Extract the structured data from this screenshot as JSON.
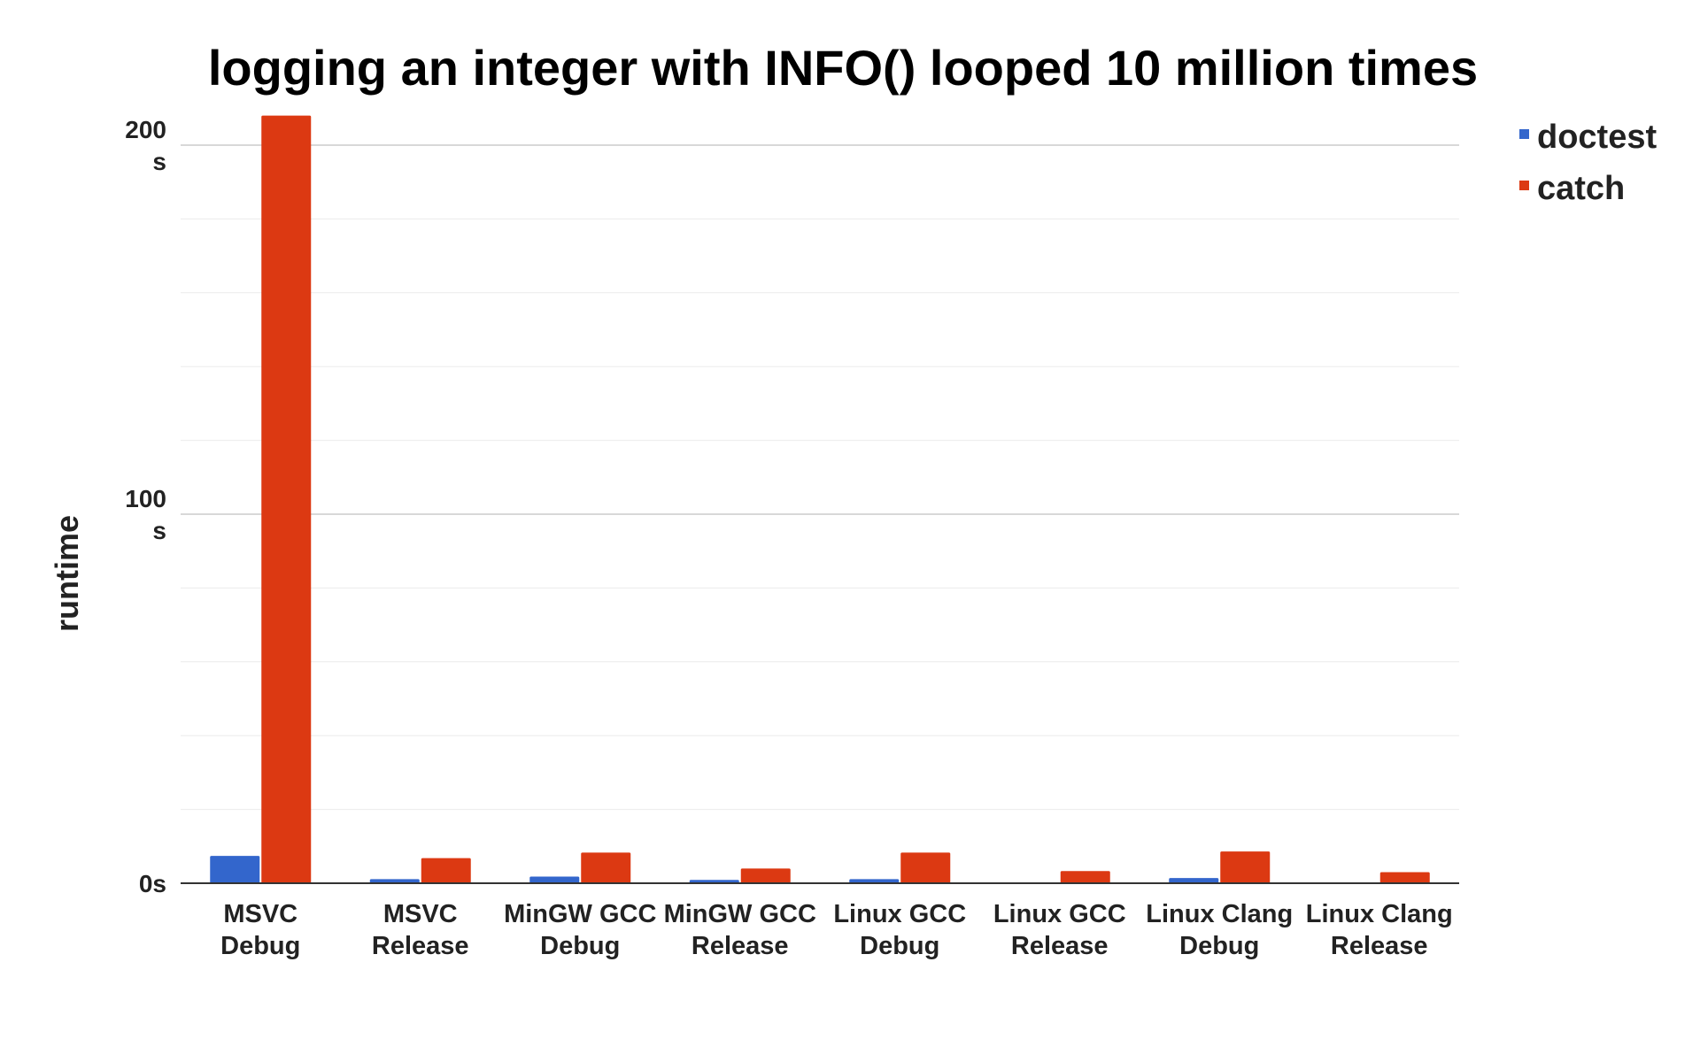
{
  "chart_data": {
    "type": "bar",
    "title": "logging an integer with INFO() looped 10 million times",
    "xlabel": "",
    "ylabel": "runtime",
    "ylim": [
      0,
      200
    ],
    "yticks": [
      {
        "value": 0,
        "label": "0s"
      },
      {
        "value": 100,
        "label": "100 s"
      },
      {
        "value": 200,
        "label": "200 s"
      }
    ],
    "minor_grid_step": 20,
    "grid": true,
    "legend_position": "right",
    "categories": [
      [
        "MSVC",
        "Debug"
      ],
      [
        "MSVC",
        "Release"
      ],
      [
        "MinGW GCC",
        "Debug"
      ],
      [
        "MinGW GCC",
        "Release"
      ],
      [
        "Linux GCC",
        "Debug"
      ],
      [
        "Linux GCC",
        "Release"
      ],
      [
        "Linux Clang",
        "Debug"
      ],
      [
        "Linux Clang",
        "Release"
      ]
    ],
    "series": [
      {
        "name": "doctest",
        "color": "#3366cc",
        "values": [
          7.4,
          1.1,
          1.8,
          0.9,
          1.1,
          0.1,
          1.4,
          0.1
        ]
      },
      {
        "name": "catch",
        "color": "#dc3912",
        "values": [
          208,
          6.8,
          8.3,
          4.0,
          8.3,
          3.3,
          8.6,
          3.0
        ]
      }
    ]
  }
}
